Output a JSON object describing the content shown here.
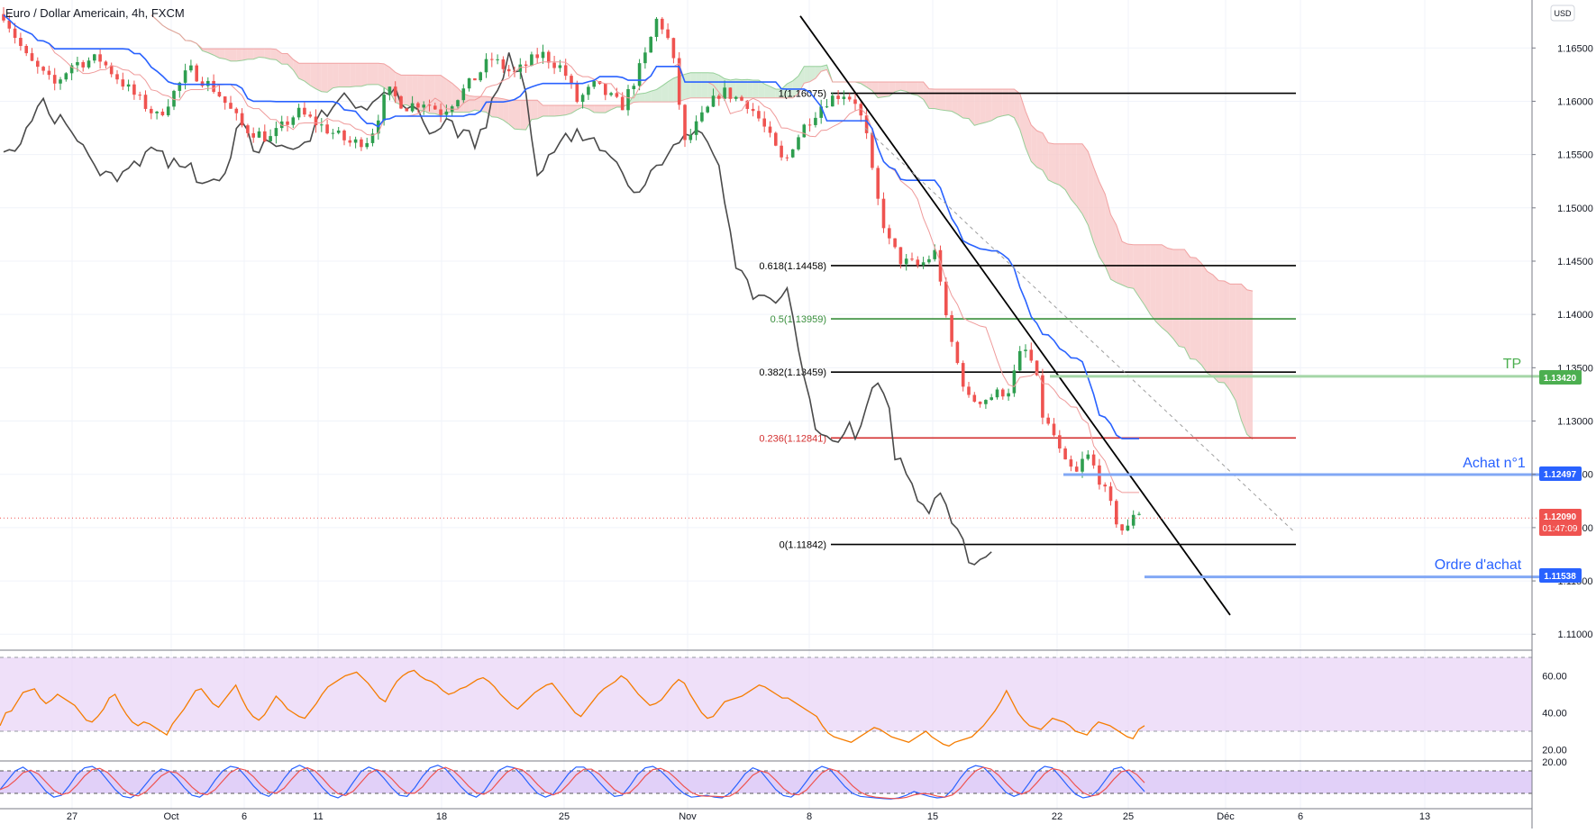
{
  "header": {
    "title": "Euro / Dollar Americain, 4h, FXCM",
    "currency_button": "USD"
  },
  "colors": {
    "bull": "#26a69a",
    "bull_body": "#2e9e4f",
    "bear": "#ef5350",
    "kijun": "#2962ff",
    "tenkan": "#ef5350",
    "chikou": "#4a4a4a",
    "cloud_bear": "#f7c5c5",
    "cloud_bull": "#c8e6c9",
    "rsi": "#f57c00",
    "rsi_band": "#e9d5f7",
    "stoch_k": "#2962ff",
    "stoch_d": "#ef5350",
    "blue_level": "#5b8def",
    "green_level": "#81c784"
  },
  "chart_data": {
    "type": "candlestick",
    "symbol": "Euro / Dollar Americain",
    "timeframe": "4h",
    "source": "FXCM",
    "price_axis": {
      "labels": [
        "1.16500",
        "1.16000",
        "1.15500",
        "1.15000",
        "1.14500",
        "1.14000",
        "1.13500",
        "1.13000",
        "1.12500",
        "1.12000",
        "1.11500",
        "1.11000"
      ],
      "ylim": [
        1.1085,
        1.1695
      ]
    },
    "time_axis": {
      "labels": [
        "27",
        "Oct",
        "6",
        "11",
        "18",
        "25",
        "Nov",
        "8",
        "15",
        "22",
        "25",
        "Déc",
        "6",
        "13"
      ]
    },
    "fibonacci": [
      {
        "ratio": "1",
        "price": "1.16075",
        "label": "1(1.16075)",
        "color": "#000000"
      },
      {
        "ratio": "0.618",
        "price": "1.14458",
        "label": "0.618(1.14458)",
        "color": "#000000"
      },
      {
        "ratio": "0.5",
        "price": "1.13959",
        "label": "0.5(1.13959)",
        "color": "#388e3c"
      },
      {
        "ratio": "0.382",
        "price": "1.13459",
        "label": "0.382(1.13459)",
        "color": "#000000"
      },
      {
        "ratio": "0.236",
        "price": "1.12841",
        "label": "0.236(1.12841)",
        "color": "#d32f2f"
      },
      {
        "ratio": "0",
        "price": "1.11842",
        "label": "0(1.11842)",
        "color": "#000000"
      }
    ],
    "price_levels": [
      {
        "name": "TP",
        "price": "1.13420",
        "color": "#4caf50"
      },
      {
        "name": "Achat n°1",
        "price": "1.12497",
        "color": "#2962ff"
      },
      {
        "name": "Ordre d'achat",
        "price": "1.11538",
        "color": "#2962ff"
      }
    ],
    "last_price": {
      "price": "1.12090",
      "countdown": "01:47:09",
      "color": "#ef5350"
    },
    "trendline": {
      "start": {
        "date": "Nov 7",
        "price": 1.168
      },
      "end": {
        "date": "Nov 30",
        "price": 1.1118
      }
    },
    "rsi": {
      "axis_labels": [
        "60.00",
        "40.00",
        "20.00"
      ],
      "bands": [
        70,
        30
      ],
      "values": [
        33,
        40,
        41,
        46,
        51,
        52,
        53,
        48,
        45,
        47,
        50,
        48,
        46,
        44,
        40,
        36,
        35,
        38,
        42,
        48,
        50,
        44,
        39,
        35,
        33,
        35,
        34,
        32,
        30,
        28,
        34,
        38,
        42,
        47,
        52,
        53,
        49,
        45,
        43,
        47,
        51,
        55,
        48,
        42,
        38,
        36,
        39,
        44,
        49,
        46,
        42,
        40,
        38,
        37,
        41,
        45,
        50,
        54,
        56,
        58,
        60,
        61,
        62,
        59,
        56,
        52,
        48,
        46,
        52,
        57,
        60,
        62,
        63,
        60,
        58,
        57,
        55,
        52,
        50,
        51,
        53,
        54,
        56,
        58,
        59,
        57,
        54,
        50,
        47,
        44,
        42,
        45,
        48,
        51,
        53,
        55,
        56,
        52,
        48,
        44,
        40,
        38,
        42,
        46,
        50,
        53,
        55,
        57,
        60,
        58,
        54,
        50,
        47,
        44,
        45,
        47,
        51,
        55,
        58,
        56,
        50,
        45,
        40,
        37,
        38,
        42,
        46,
        47,
        48,
        49,
        51,
        53,
        55,
        54,
        52,
        50,
        48,
        48,
        46,
        44,
        42,
        40,
        38,
        33,
        29,
        27,
        26,
        25,
        24,
        26,
        28,
        30,
        32,
        31,
        29,
        27,
        26,
        25,
        24,
        26,
        28,
        30,
        27,
        25,
        23,
        22,
        24,
        25,
        26,
        27,
        30,
        33,
        37,
        41,
        46,
        52,
        46,
        40,
        36,
        33,
        32,
        31,
        34,
        37,
        36,
        35,
        33,
        30,
        29,
        28,
        32,
        35,
        34,
        33,
        31,
        29,
        27,
        26,
        31,
        33
      ]
    },
    "stochastic": {
      "axis_labels": [
        "20.00"
      ],
      "bands": [
        80,
        20
      ],
      "k_values": [
        30,
        55,
        80,
        90,
        75,
        50,
        25,
        10,
        15,
        40,
        70,
        88,
        92,
        80,
        55,
        30,
        12,
        8,
        20,
        45,
        70,
        85,
        80,
        60,
        35,
        15,
        10,
        25,
        55,
        80,
        92,
        88,
        65,
        40,
        20,
        12,
        30,
        60,
        85,
        95,
        85,
        60,
        35,
        15,
        8,
        20,
        50,
        78,
        90,
        82,
        60,
        35,
        15,
        12,
        35,
        65,
        88,
        95,
        85,
        62,
        38,
        18,
        10,
        25,
        55,
        82,
        92,
        88,
        68,
        42,
        20,
        10,
        18,
        45,
        72,
        90,
        90,
        74,
        50,
        28,
        12,
        15,
        40,
        70,
        88,
        92,
        80,
        60,
        38,
        20,
        10,
        12,
        15,
        10,
        8,
        20,
        45,
        72,
        88,
        80,
        55,
        30,
        14,
        10,
        25,
        52,
        80,
        92,
        85,
        62,
        38,
        20,
        12,
        10,
        8,
        6,
        5,
        8,
        15,
        25,
        18,
        12,
        8,
        10,
        30,
        60,
        85,
        94,
        90,
        70,
        45,
        22,
        12,
        20,
        48,
        78,
        92,
        88,
        65,
        40,
        18,
        8,
        12,
        30,
        58,
        85,
        90,
        72,
        48,
        25
      ]
    }
  },
  "annotations": {
    "tp_label": "TP",
    "achat1_label": "Achat n°1",
    "ordre_label": "Ordre d'achat",
    "tp_price": "1.13420",
    "achat1_price": "1.12497",
    "ordre_price": "1.11538",
    "last_price": "1.12090",
    "countdown": "01:47:09"
  }
}
